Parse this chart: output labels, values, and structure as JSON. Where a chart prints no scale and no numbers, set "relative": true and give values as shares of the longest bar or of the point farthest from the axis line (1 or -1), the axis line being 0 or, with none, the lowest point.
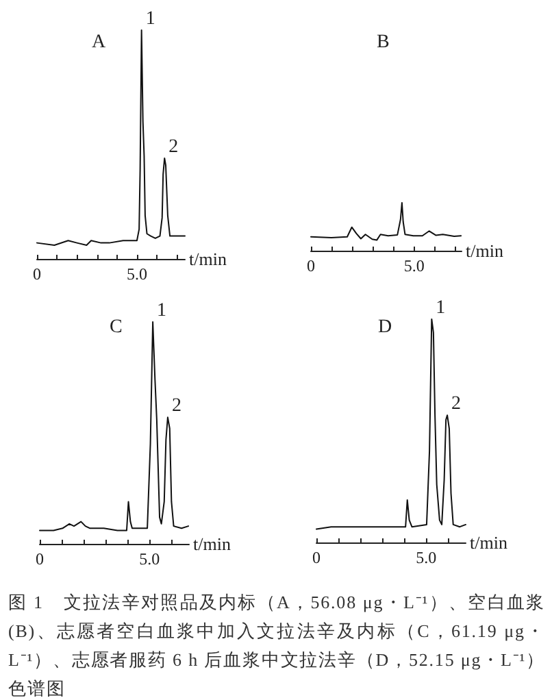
{
  "chart_data": [
    {
      "type": "line",
      "title": "A",
      "relative": true,
      "xlabel": "t/min",
      "color": "#111111",
      "marker": "none",
      "xlim": [
        0,
        7.4
      ],
      "xticks": [
        {
          "value": 0,
          "label": "0"
        },
        {
          "value": 1,
          "label": null
        },
        {
          "value": 2,
          "label": null
        },
        {
          "value": 3,
          "label": null
        },
        {
          "value": 4,
          "label": null
        },
        {
          "value": 5,
          "label": "5.0"
        },
        {
          "value": 6,
          "label": null
        },
        {
          "value": 7,
          "label": null
        }
      ],
      "x": [
        0,
        0.87,
        1.56,
        2.0,
        2.48,
        2.71,
        3.2,
        3.62,
        4.31,
        5.0,
        5.11,
        5.16,
        5.23,
        5.3,
        5.36,
        5.41,
        5.5,
        5.69,
        5.92,
        6.15,
        6.26,
        6.31,
        6.38,
        6.44,
        6.54,
        6.65,
        6.83,
        7.1,
        7.4
      ],
      "values": [
        0.07,
        0.06,
        0.08,
        0.07,
        0.06,
        0.08,
        0.07,
        0.07,
        0.08,
        0.08,
        0.13,
        0.39,
        1,
        0.6,
        0.45,
        0.19,
        0.11,
        0.1,
        0.09,
        0.1,
        0.18,
        0.37,
        0.44,
        0.41,
        0.19,
        0.1,
        0.1,
        0.1,
        0.1
      ],
      "annotations": [
        {
          "text": "1",
          "x": 5.23,
          "y": 1
        },
        {
          "text": "2",
          "x": 6.38,
          "y": 0.44
        }
      ]
    },
    {
      "type": "line",
      "title": "B",
      "relative": true,
      "xlabel": "t/min",
      "color": "#111111",
      "marker": "none",
      "xlim": [
        0,
        7.3
      ],
      "xticks": [
        {
          "value": 0,
          "label": "0"
        },
        {
          "value": 1,
          "label": null
        },
        {
          "value": 2,
          "label": null
        },
        {
          "value": 3,
          "label": null
        },
        {
          "value": 4,
          "label": null
        },
        {
          "value": 5,
          "label": "5.0"
        },
        {
          "value": 6,
          "label": null
        },
        {
          "value": 7,
          "label": null
        }
      ],
      "x": [
        0,
        0.99,
        1.76,
        1.98,
        2.2,
        2.42,
        2.64,
        2.97,
        3.19,
        3.37,
        3.74,
        4.19,
        4.34,
        4.41,
        4.47,
        4.56,
        4.96,
        5.4,
        5.73,
        6.06,
        6.39,
        6.94,
        7.27
      ],
      "values": [
        0.29,
        0.27,
        0.29,
        0.49,
        0.36,
        0.25,
        0.34,
        0.24,
        0.22,
        0.34,
        0.31,
        0.33,
        0.65,
        1,
        0.6,
        0.34,
        0.31,
        0.31,
        0.41,
        0.32,
        0.34,
        0.3,
        0.31
      ]
    },
    {
      "type": "line",
      "title": "C",
      "relative": true,
      "xlabel": "t/min",
      "color": "#111111",
      "marker": "none",
      "xlim": [
        0,
        6.8
      ],
      "xticks": [
        {
          "value": 0,
          "label": "0"
        },
        {
          "value": 1,
          "label": null
        },
        {
          "value": 2,
          "label": null
        },
        {
          "value": 3,
          "label": null
        },
        {
          "value": 4,
          "label": null
        },
        {
          "value": 5,
          "label": "5.0"
        },
        {
          "value": 6,
          "label": null
        }
      ],
      "x": [
        0,
        0.63,
        1.04,
        1.35,
        1.56,
        1.88,
        2.08,
        2.29,
        2.92,
        3.54,
        3.96,
        4.04,
        4.13,
        4.21,
        4.9,
        5.04,
        5.15,
        5.25,
        5.33,
        5.46,
        5.54,
        5.67,
        5.75,
        5.83,
        5.92,
        6.0,
        6.1,
        6.46,
        6.77
      ],
      "values": [
        0.06,
        0.06,
        0.07,
        0.09,
        0.08,
        0.1,
        0.08,
        0.07,
        0.07,
        0.06,
        0.06,
        0.19,
        0.1,
        0.07,
        0.07,
        0.45,
        1,
        0.74,
        0.56,
        0.12,
        0.09,
        0.19,
        0.47,
        0.57,
        0.52,
        0.19,
        0.08,
        0.07,
        0.08
      ],
      "annotations": [
        {
          "text": "1",
          "x": 5.15,
          "y": 1
        },
        {
          "text": "2",
          "x": 5.83,
          "y": 0.57
        }
      ]
    },
    {
      "type": "line",
      "title": "D",
      "relative": true,
      "xlabel": "t/min",
      "color": "#111111",
      "marker": "none",
      "xlim": [
        0,
        6.8
      ],
      "xticks": [
        {
          "value": 0,
          "label": "0"
        },
        {
          "value": 1,
          "label": null
        },
        {
          "value": 2,
          "label": null
        },
        {
          "value": 3,
          "label": null
        },
        {
          "value": 4,
          "label": null
        },
        {
          "value": 5,
          "label": "5.0"
        },
        {
          "value": 6,
          "label": null
        }
      ],
      "x": [
        0,
        0.67,
        1.3,
        1.92,
        2.55,
        3.18,
        3.81,
        4.06,
        4.14,
        4.23,
        4.35,
        5.02,
        5.15,
        5.25,
        5.33,
        5.4,
        5.48,
        5.61,
        5.71,
        5.82,
        5.9,
        5.96,
        6.05,
        6.13,
        6.23,
        6.53,
        6.8
      ],
      "values": [
        0.06,
        0.07,
        0.07,
        0.07,
        0.07,
        0.07,
        0.07,
        0.07,
        0.19,
        0.1,
        0.07,
        0.08,
        0.41,
        1,
        0.94,
        0.57,
        0.26,
        0.1,
        0.08,
        0.28,
        0.55,
        0.57,
        0.51,
        0.22,
        0.08,
        0.07,
        0.08
      ],
      "annotations": [
        {
          "text": "1",
          "x": 5.25,
          "y": 1
        },
        {
          "text": "2",
          "x": 5.96,
          "y": 0.57
        }
      ]
    },
    {
      "type": "other",
      "annotations": [
        "图 1　文拉法辛对照品及内标（A，56.08 μg・L⁻¹）、空白血浆(B)、志愿者空白血浆中加入文拉法辛及内标（C，61.19 μg・L⁻¹）、志愿者服药 6 h 后血浆中文拉法辛（D，52.15 μg・L⁻¹）色谱图"
      ]
    }
  ]
}
